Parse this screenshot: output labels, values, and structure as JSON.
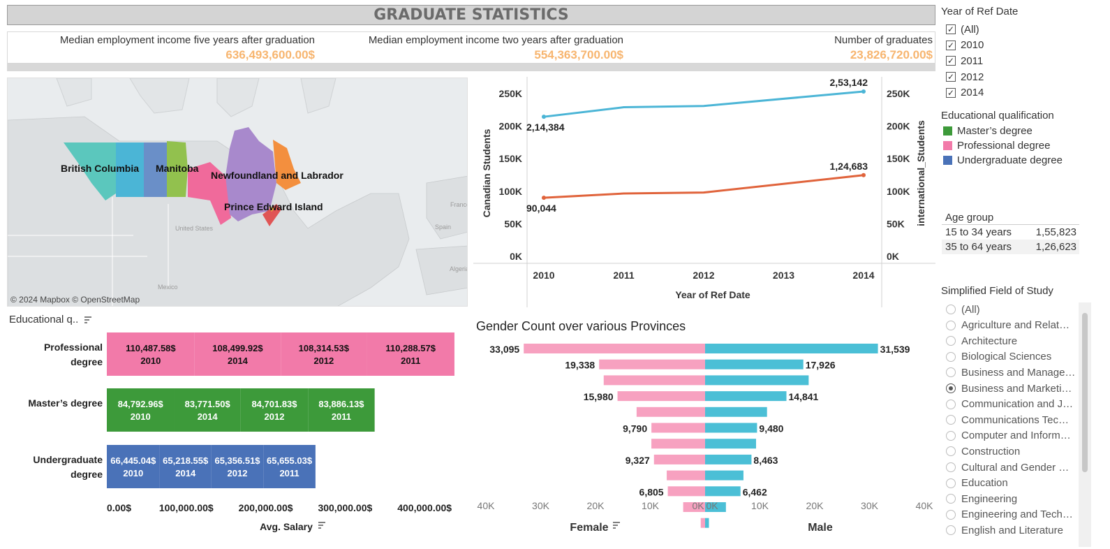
{
  "header": {
    "title": "GRADUATE STATISTICS"
  },
  "kpis": [
    {
      "label": "Median employment income five years after graduation",
      "value": "636,493,600.00$"
    },
    {
      "label": "Median employment income two years after graduation",
      "value": "554,363,700.00$"
    },
    {
      "label": "Number of graduates",
      "value": "23,826,720.00$"
    }
  ],
  "map": {
    "attribution": "© 2024 Mapbox © OpenStreetMap",
    "province_labels": [
      "British Columbia",
      "Manitoba",
      "Newfoundland and Labrador",
      "Prince Edward Island"
    ],
    "base_labels": [
      "United States",
      "Mexico",
      "France",
      "Spain",
      "Algeria"
    ],
    "colors": {
      "bc": "#5bc7bd",
      "ab": "#4bb5d6",
      "sk": "#6a8fc8",
      "mb": "#92c14e",
      "on": "#f06a9b",
      "qc": "#a889cc",
      "nl": "#f38f3e",
      "ns": "#e05555",
      "pe": "#f4c341"
    }
  },
  "filters": {
    "year": {
      "title": "Year of Ref Date",
      "options": [
        {
          "label": "(All)",
          "checked": true
        },
        {
          "label": "2010",
          "checked": true
        },
        {
          "label": "2011",
          "checked": true
        },
        {
          "label": "2012",
          "checked": true
        },
        {
          "label": "2014",
          "checked": true
        }
      ]
    },
    "qualification": {
      "title": "Educational qualification",
      "items": [
        {
          "label": "Master’s degree",
          "color": "#3d9a3a"
        },
        {
          "label": "Professional degree",
          "color": "#f27aa9"
        },
        {
          "label": "Undergraduate degree",
          "color": "#4a72b8"
        }
      ]
    },
    "age": {
      "title": "Age group",
      "rows": [
        {
          "label": "15 to 34 years",
          "value": "1,55,823"
        },
        {
          "label": "35 to 64 years",
          "value": "1,26,623"
        }
      ]
    },
    "field": {
      "title": "Simplified Field of Study",
      "options": [
        {
          "label": "(All)",
          "selected": false
        },
        {
          "label": "Agriculture and Relat…",
          "selected": false
        },
        {
          "label": "Architecture",
          "selected": false
        },
        {
          "label": "Biological Sciences",
          "selected": false
        },
        {
          "label": "Business and Manage…",
          "selected": false
        },
        {
          "label": "Business and Marketi…",
          "selected": true
        },
        {
          "label": "Communication and J…",
          "selected": false
        },
        {
          "label": "Communications Tec…",
          "selected": false
        },
        {
          "label": "Computer and Inform…",
          "selected": false
        },
        {
          "label": "Construction",
          "selected": false
        },
        {
          "label": "Cultural and Gender …",
          "selected": false
        },
        {
          "label": "Education",
          "selected": false
        },
        {
          "label": "Engineering",
          "selected": false
        },
        {
          "label": "Engineering and Tech…",
          "selected": false
        },
        {
          "label": "English and Literature",
          "selected": false
        }
      ]
    }
  },
  "chart_data": [
    {
      "type": "line",
      "title": "",
      "xlabel": "Year of Ref Date",
      "ylabel": "Canadian Students",
      "ylabel2": "international_Students",
      "x": [
        2010,
        2011,
        2012,
        2013,
        2014
      ],
      "x_ticks": [
        "2010",
        "2011",
        "2012",
        "2013",
        "2014"
      ],
      "y_ticks": [
        "250K",
        "200K",
        "150K",
        "100K",
        "50K",
        "0K"
      ],
      "ylim": [
        0,
        265000
      ],
      "series": [
        {
          "color": "#4bb5d6",
          "x": [
            2010,
            2011,
            2012,
            2014
          ],
          "values": [
            214384,
            229000,
            231000,
            253142
          ],
          "labels": [
            "2,14,384",
            "",
            "",
            "2,53,142"
          ]
        },
        {
          "color": "#e0633b",
          "x": [
            2010,
            2011,
            2012,
            2014
          ],
          "values": [
            90044,
            96500,
            98000,
            124683
          ],
          "labels": [
            "90,044",
            "",
            "",
            "1,24,683"
          ]
        }
      ]
    },
    {
      "type": "bar",
      "title": "",
      "header_label": "Educational q..",
      "xlabel": "Avg. Salary",
      "x_ticks": [
        "0.00$",
        "100,000.00$",
        "200,000.00$",
        "300,000.00$",
        "400,000.00$"
      ],
      "xlim": [
        0,
        435000
      ],
      "categories": [
        "Professional degree",
        "Master’s degree",
        "Undergraduate degree"
      ],
      "stacked": [
        {
          "category": "Professional degree",
          "color": "#f27aa9",
          "segments": [
            {
              "year": "2010",
              "value": 110487.58,
              "label": "110,487.58$"
            },
            {
              "year": "2014",
              "value": 108499.92,
              "label": "108,499.92$"
            },
            {
              "year": "2012",
              "value": 108314.53,
              "label": "108,314.53$"
            },
            {
              "year": "2011",
              "value": 110288.57,
              "label": "110,288.57$"
            }
          ]
        },
        {
          "category": "Master’s degree",
          "color": "#3d9a3a",
          "segments": [
            {
              "year": "2010",
              "value": 84792.96,
              "label": "84,792.96$"
            },
            {
              "year": "2014",
              "value": 83771.5,
              "label": "83,771.50$"
            },
            {
              "year": "2012",
              "value": 84701.83,
              "label": "84,701.83$"
            },
            {
              "year": "2011",
              "value": 83886.13,
              "label": "83,886.13$"
            }
          ]
        },
        {
          "category": "Undergraduate degree",
          "color": "#4a72b8",
          "segments": [
            {
              "year": "2010",
              "value": 66445.04,
              "label": "66,445.04$"
            },
            {
              "year": "2014",
              "value": 65218.55,
              "label": "65,218.55$"
            },
            {
              "year": "2012",
              "value": 65356.51,
              "label": "65,356.51$"
            },
            {
              "year": "2011",
              "value": 65655.03,
              "label": "65,655.03$"
            }
          ]
        }
      ]
    },
    {
      "type": "bar",
      "title": "Gender Count over various Provinces",
      "xlabel_left": "Female",
      "xlabel_right": "Male",
      "x_ticks_left": [
        "40K",
        "30K",
        "20K",
        "10K",
        "0K"
      ],
      "x_ticks_right": [
        "0K",
        "10K",
        "20K",
        "30K",
        "40K"
      ],
      "xlim": [
        0,
        40000
      ],
      "series": [
        {
          "name": "Female",
          "color": "#f7a1c0",
          "values": [
            33095,
            19338,
            18500,
            15980,
            12500,
            9790,
            9800,
            9327,
            7000,
            6805,
            4000,
            800
          ],
          "labels": [
            "33,095",
            "19,338",
            "",
            "15,980",
            "",
            "9,790",
            "",
            "9,327",
            "",
            "6,805",
            "",
            ""
          ]
        },
        {
          "name": "Male",
          "color": "#4bbfd6",
          "values": [
            31539,
            17926,
            18900,
            14841,
            11300,
            9480,
            9300,
            8463,
            7000,
            6462,
            3800,
            700
          ],
          "labels": [
            "31,539",
            "17,926",
            "",
            "14,841",
            "",
            "9,480",
            "",
            "8,463",
            "",
            "6,462",
            "",
            ""
          ]
        }
      ]
    }
  ]
}
